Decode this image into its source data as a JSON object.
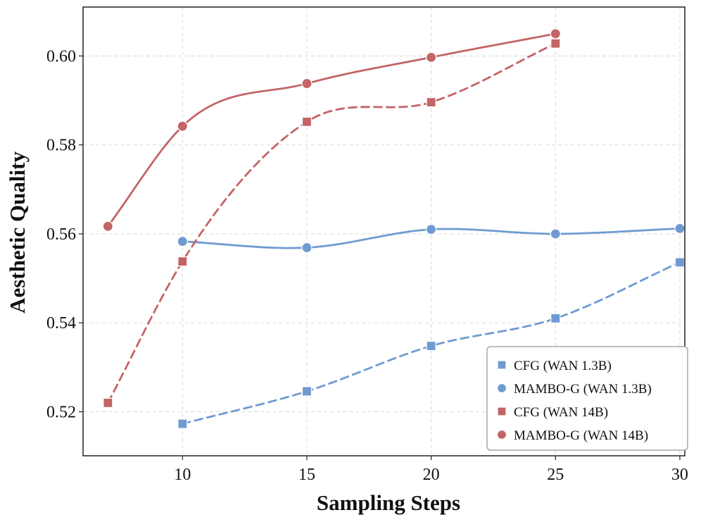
{
  "chart_data": {
    "type": "line",
    "title": "",
    "xlabel": "Sampling Steps",
    "ylabel": "Aesthetic Quality",
    "xlim": [
      6,
      30.2
    ],
    "ylim": [
      0.5101,
      0.611
    ],
    "xticks": [
      10,
      15,
      20,
      25,
      30
    ],
    "yticks": [
      0.52,
      0.54,
      0.56,
      0.58,
      0.6
    ],
    "xtick_labels": [
      "10",
      "15",
      "20",
      "25",
      "30"
    ],
    "ytick_labels": [
      "0.52",
      "0.54",
      "0.56",
      "0.58",
      "0.60"
    ],
    "grid": true,
    "legend_position": "bottom-right",
    "series": [
      {
        "name": "CFG (WAN 1.3B)",
        "color": "#6f9bd1",
        "marker": "square",
        "line": "dashed",
        "x": [
          10,
          15,
          20,
          25,
          30
        ],
        "y": [
          0.5173,
          0.5246,
          0.5348,
          0.541,
          0.5536
        ]
      },
      {
        "name": "MAMBO-G (WAN 1.3B)",
        "color": "#6f9bd1",
        "marker": "circle",
        "line": "solid",
        "x": [
          10,
          15,
          20,
          25,
          30
        ],
        "y": [
          0.5583,
          0.5569,
          0.561,
          0.56,
          0.5612
        ]
      },
      {
        "name": "CFG (WAN 14B)",
        "color": "#c46466",
        "marker": "square",
        "line": "dashed",
        "x": [
          7,
          10,
          15,
          20,
          25
        ],
        "y": [
          0.522,
          0.5538,
          0.5852,
          0.5896,
          0.6028
        ]
      },
      {
        "name": "MAMBO-G (WAN 14B)",
        "color": "#c46466",
        "marker": "circle",
        "line": "solid",
        "x": [
          7,
          10,
          15,
          20,
          25
        ],
        "y": [
          0.5617,
          0.5842,
          0.5938,
          0.5997,
          0.605
        ]
      }
    ]
  }
}
